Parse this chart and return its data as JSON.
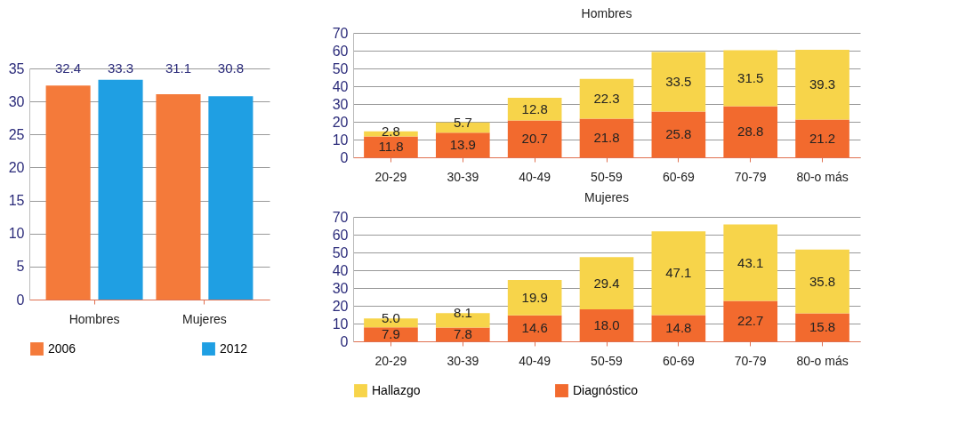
{
  "chart_data": [
    {
      "type": "bar",
      "categories": [
        "Hombres",
        "Mujeres"
      ],
      "series": [
        {
          "name": "2006",
          "color": "#f47a3a",
          "values": [
            32.4,
            31.1
          ]
        },
        {
          "name": "2012",
          "color": "#1f9fe3",
          "values": [
            33.3,
            30.8
          ]
        }
      ],
      "ylim": [
        0,
        35
      ],
      "yticks": [
        0,
        5,
        10,
        15,
        20,
        25,
        30,
        35
      ],
      "grid": "y",
      "data_labels": true,
      "legend": "bottom"
    },
    {
      "type": "bar",
      "title": "Hombres",
      "stacked": true,
      "categories": [
        "20-29",
        "30-39",
        "40-49",
        "50-59",
        "60-69",
        "70-79",
        "80-o más"
      ],
      "series": [
        {
          "color": "#f26a2e",
          "values": [
            11.8,
            13.9,
            20.7,
            21.8,
            25.8,
            28.8,
            21.2
          ]
        },
        {
          "color": "#f7d44a",
          "values": [
            2.8,
            5.7,
            12.8,
            22.3,
            33.5,
            31.5,
            39.3
          ]
        }
      ],
      "ylim": [
        0,
        70
      ],
      "yticks": [
        0,
        10,
        20,
        30,
        40,
        50,
        60,
        70
      ],
      "grid": "y",
      "data_labels": true
    },
    {
      "type": "bar",
      "title": "Mujeres",
      "stacked": true,
      "categories": [
        "20-29",
        "30-39",
        "40-49",
        "50-59",
        "60-69",
        "70-79",
        "80-o más"
      ],
      "series": [
        {
          "name": "Diagnóstico",
          "color": "#f26a2e",
          "values": [
            7.9,
            7.8,
            14.6,
            18.0,
            14.8,
            22.7,
            15.8
          ],
          "value_labels": [
            "7.9",
            "7.8",
            "14.6",
            "18.0",
            "14.8",
            "22.7",
            "15.8"
          ]
        },
        {
          "name": "Hallazgo",
          "color": "#f7d44a",
          "values": [
            5.0,
            8.1,
            19.9,
            29.4,
            47.1,
            43.1,
            35.8
          ],
          "value_labels": [
            "5.0",
            "8.1",
            "19.9",
            "29.4",
            "47.1",
            "43.1",
            "35.8"
          ]
        }
      ],
      "ylim": [
        0,
        70
      ],
      "yticks": [
        0,
        10,
        20,
        30,
        40,
        50,
        60,
        70
      ],
      "grid": "y",
      "legend": "bottom"
    }
  ]
}
